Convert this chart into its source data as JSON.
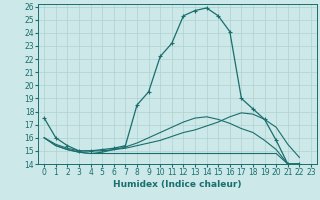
{
  "xlabel": "Humidex (Indice chaleur)",
  "background_color": "#cce8e8",
  "grid_color": "#b0d0d0",
  "line_color": "#1a6e6e",
  "xlim": [
    -0.5,
    23.5
  ],
  "ylim": [
    14,
    26.2
  ],
  "xticks": [
    0,
    1,
    2,
    3,
    4,
    5,
    6,
    7,
    8,
    9,
    10,
    11,
    12,
    13,
    14,
    15,
    16,
    17,
    18,
    19,
    20,
    21,
    22,
    23
  ],
  "yticks": [
    14,
    15,
    16,
    17,
    18,
    19,
    20,
    21,
    22,
    23,
    24,
    25,
    26
  ],
  "series": [
    [
      17.5,
      16.0,
      15.4,
      15.0,
      15.0,
      15.1,
      15.2,
      15.4,
      18.5,
      19.5,
      22.2,
      23.2,
      25.3,
      25.7,
      25.9,
      25.3,
      24.1,
      19.0,
      18.2,
      17.4,
      15.8,
      14.0,
      14.0
    ],
    [
      16.0,
      15.5,
      15.2,
      15.0,
      15.0,
      15.0,
      15.1,
      15.2,
      15.4,
      15.6,
      15.8,
      16.1,
      16.4,
      16.6,
      16.9,
      17.2,
      17.6,
      17.9,
      17.8,
      17.4,
      16.8,
      15.5,
      14.5
    ],
    [
      16.0,
      15.4,
      15.1,
      14.9,
      14.8,
      14.8,
      14.8,
      14.8,
      14.8,
      14.8,
      14.8,
      14.8,
      14.8,
      14.8,
      14.8,
      14.8,
      14.8,
      14.8,
      14.8,
      14.8,
      14.8,
      14.0,
      14.0
    ],
    [
      16.0,
      15.4,
      15.1,
      14.9,
      14.8,
      14.9,
      15.1,
      15.3,
      15.6,
      16.0,
      16.4,
      16.8,
      17.2,
      17.5,
      17.6,
      17.4,
      17.1,
      16.7,
      16.4,
      15.8,
      15.1,
      14.0,
      14.0
    ]
  ],
  "x": [
    0,
    1,
    2,
    3,
    4,
    5,
    6,
    7,
    8,
    9,
    10,
    11,
    12,
    13,
    14,
    15,
    16,
    17,
    18,
    19,
    20,
    21,
    22
  ]
}
